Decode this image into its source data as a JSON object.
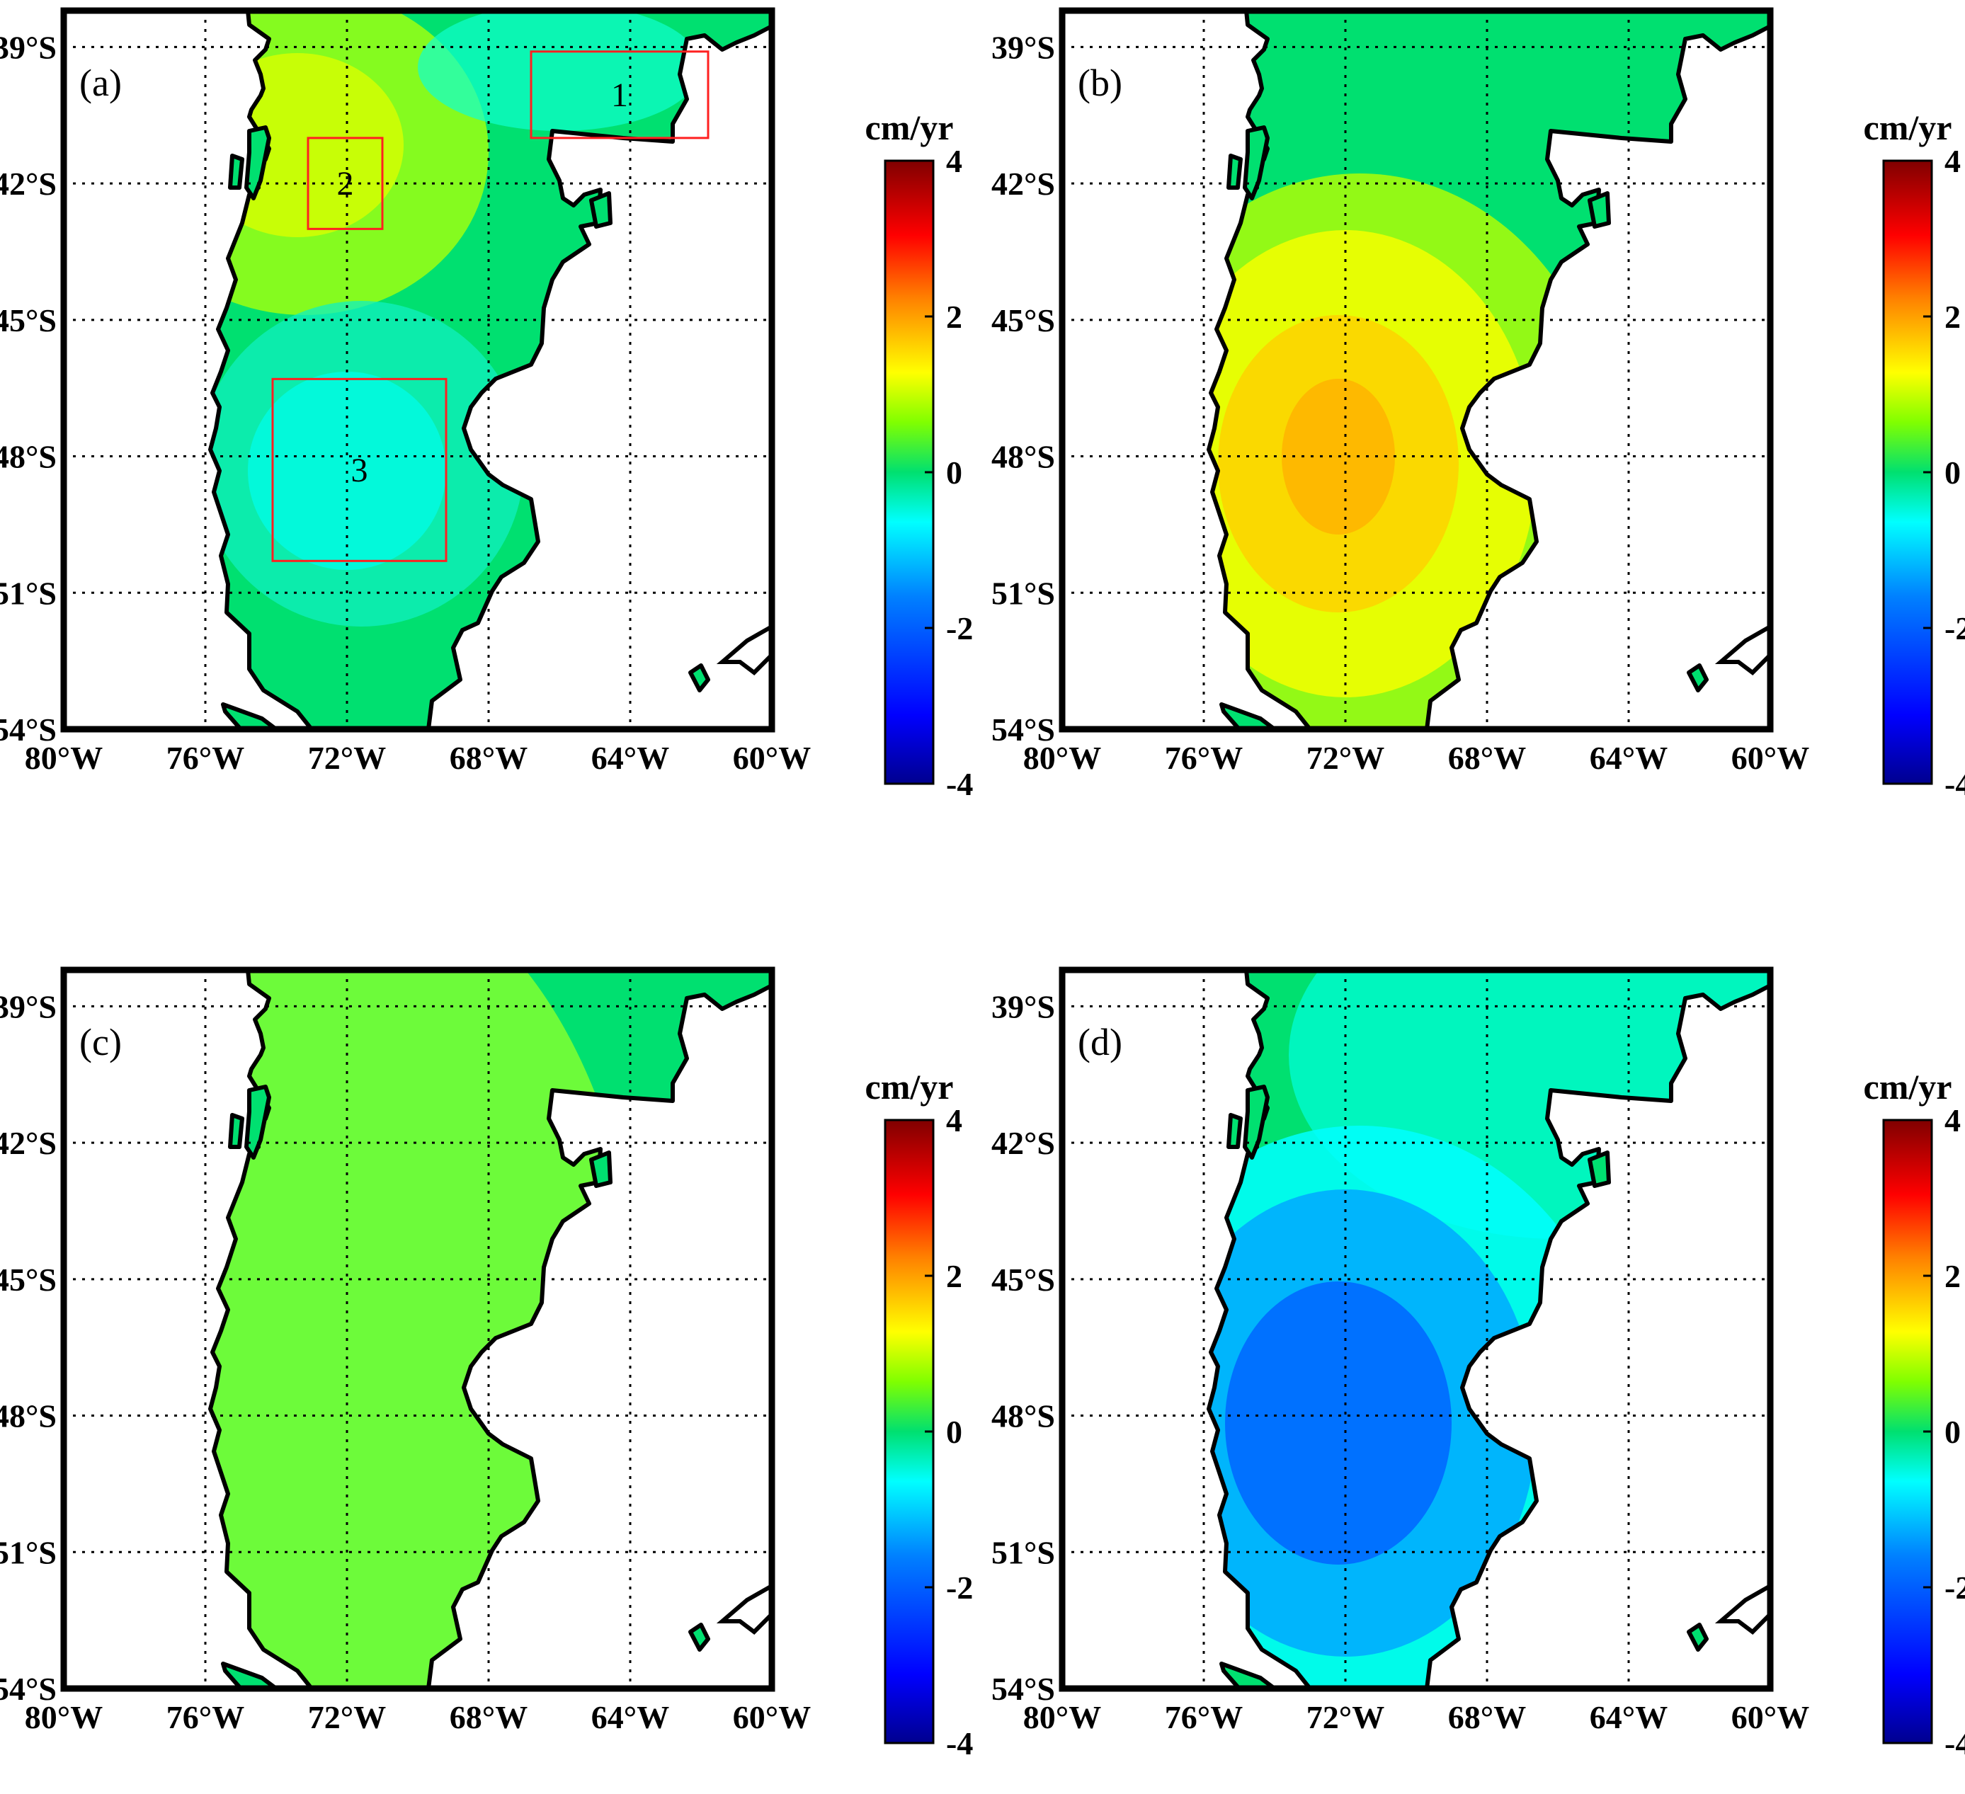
{
  "figure": {
    "x_ticks": [
      "80°W",
      "76°W",
      "72°W",
      "68°W",
      "64°W",
      "60°W"
    ],
    "y_ticks": [
      "39°S",
      "42°S",
      "45°S",
      "48°S",
      "51°S",
      "54°S"
    ],
    "lon_range": [
      -80,
      -60
    ],
    "lat_range": [
      -54,
      -38.2
    ],
    "colorbar": {
      "unit": "cm/yr",
      "ticks": [
        "4",
        "2",
        "0",
        "-2",
        "-4"
      ],
      "range": [
        -4,
        4
      ],
      "colormap": [
        "#00008f",
        "#0000ff",
        "#0080ff",
        "#00ffff",
        "#00e070",
        "#80ff00",
        "#ffff00",
        "#ff8000",
        "#ff0000",
        "#800000"
      ]
    },
    "land_color_zero": "#00e070",
    "panels": [
      {
        "id": "a",
        "label": "(a)",
        "regions": [
          {
            "label": "1",
            "lon": [
              -66.8,
              -61.8
            ],
            "lat": [
              -41.0,
              -39.1
            ]
          },
          {
            "label": "2",
            "lon": [
              -73.1,
              -71.0
            ],
            "lat": [
              -43.0,
              -41.0
            ]
          },
          {
            "label": "3",
            "lon": [
              -74.1,
              -69.2
            ],
            "lat": [
              -50.3,
              -46.3
            ]
          }
        ]
      },
      {
        "id": "b",
        "label": "(b)",
        "regions": []
      },
      {
        "id": "c",
        "label": "(c)",
        "regions": []
      },
      {
        "id": "d",
        "label": "(d)",
        "regions": []
      }
    ]
  }
}
